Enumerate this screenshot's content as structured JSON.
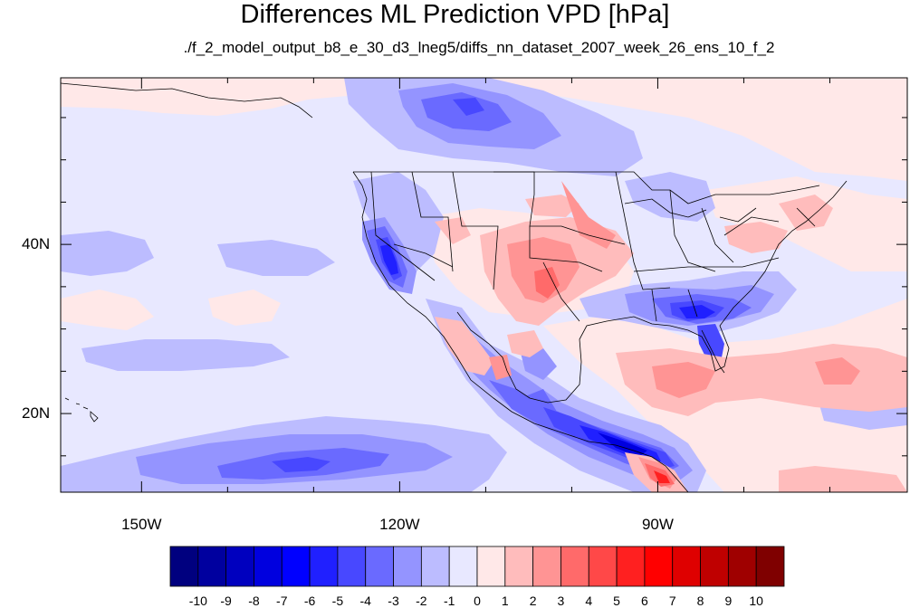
{
  "title": "Differences ML Prediction VPD [hPa]",
  "subtitle": "./f_2_model_output_b8_e_30_d3_lneg5/diffs_nn_dataset_2007_week_26_ens_10_f_2",
  "axes": {
    "x_ticks": [
      {
        "value": -150,
        "label": "150W"
      },
      {
        "value": -120,
        "label": "120W"
      },
      {
        "value": -90,
        "label": "90W"
      }
    ],
    "y_ticks": [
      {
        "value": 40,
        "label": "40N"
      },
      {
        "value": 20,
        "label": "20N"
      }
    ],
    "lon_range": [
      -159.4,
      -61
    ],
    "lat_range": [
      10.7,
      59.7
    ]
  },
  "colorbar": {
    "labels": [
      "-10",
      "-9",
      "-8",
      "-7",
      "-6",
      "-5",
      "-4",
      "-3",
      "-2",
      "-1",
      "0",
      "1",
      "2",
      "3",
      "4",
      "5",
      "6",
      "7",
      "8",
      "9",
      "10"
    ],
    "colors": [
      "#00007f",
      "#00009f",
      "#0000bf",
      "#0000df",
      "#0000ff",
      "#2020ff",
      "#4848ff",
      "#6a6aff",
      "#9494ff",
      "#bcbcff",
      "#e8e8ff",
      "#ffe8e8",
      "#ffbcbc",
      "#ff9494",
      "#ff6a6a",
      "#ff4848",
      "#ff2020",
      "#ff0000",
      "#df0000",
      "#bf0000",
      "#9f0000",
      "#7f0000"
    ]
  },
  "map_colors": {
    "ocean_base": "#e8e8ff",
    "light_pos": "#ffe8e8",
    "pos1": "#ffbcbc",
    "pos2": "#ff9494",
    "pos3": "#ff6a6a",
    "neg1": "#bcbcff",
    "neg2": "#9494ff",
    "neg3": "#6a6aff",
    "neg4": "#4848ff",
    "neg5": "#2020ff",
    "neg6": "#0000df",
    "strong_pos": "#ff2020"
  }
}
